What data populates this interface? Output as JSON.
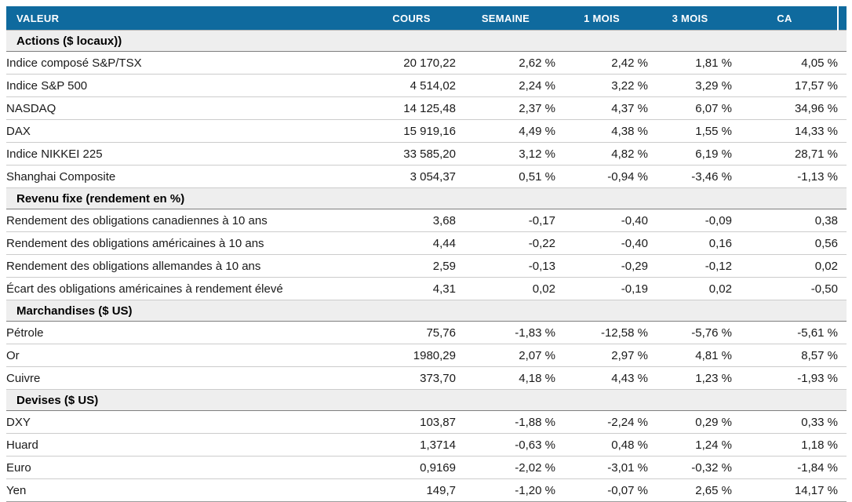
{
  "colors": {
    "header_bg": "#0f6a9e",
    "positive": "#21a15a",
    "negative": "#e0291b",
    "section_bg": "#eeeeee"
  },
  "chart_data": {
    "type": "table",
    "columns": [
      "VALEUR",
      "COURS",
      "SEMAINE",
      "1 MOIS",
      "3 MOIS",
      "CA"
    ],
    "sections": [
      {
        "title": "Actions ($ locaux))",
        "rows": [
          {
            "label": "Indice composé S&P/TSX",
            "cours": "20 170,22",
            "changes": [
              {
                "v": "2,62 %",
                "t": "g"
              },
              {
                "v": "2,42 %",
                "t": "g"
              },
              {
                "v": "1,81 %",
                "t": "g"
              },
              {
                "v": "4,05 %",
                "t": "g"
              }
            ]
          },
          {
            "label": "Indice S&P 500",
            "cours": "4 514,02",
            "changes": [
              {
                "v": "2,24 %",
                "t": "g"
              },
              {
                "v": "3,22 %",
                "t": "g"
              },
              {
                "v": "3,29 %",
                "t": "g"
              },
              {
                "v": "17,57 %",
                "t": "g"
              }
            ]
          },
          {
            "label": "NASDAQ",
            "cours": "14 125,48",
            "changes": [
              {
                "v": "2,37 %",
                "t": "g"
              },
              {
                "v": "4,37 %",
                "t": "g"
              },
              {
                "v": "6,07 %",
                "t": "g"
              },
              {
                "v": "34,96 %",
                "t": "g"
              }
            ]
          },
          {
            "label": "DAX",
            "cours": "15 919,16",
            "changes": [
              {
                "v": "4,49 %",
                "t": "g"
              },
              {
                "v": "4,38 %",
                "t": "g"
              },
              {
                "v": "1,55 %",
                "t": "g"
              },
              {
                "v": "14,33 %",
                "t": "g"
              }
            ]
          },
          {
            "label": "Indice NIKKEI 225",
            "cours": "33 585,20",
            "changes": [
              {
                "v": "3,12 %",
                "t": "g"
              },
              {
                "v": "4,82 %",
                "t": "g"
              },
              {
                "v": "6,19 %",
                "t": "g"
              },
              {
                "v": "28,71 %",
                "t": "g"
              }
            ]
          },
          {
            "label": "Shanghai Composite",
            "cours": "3 054,37",
            "changes": [
              {
                "v": "0,51 %",
                "t": "g"
              },
              {
                "v": "-0,94 %",
                "t": "r"
              },
              {
                "v": "-3,46 %",
                "t": "r"
              },
              {
                "v": "-1,13 %",
                "t": "r"
              }
            ]
          }
        ]
      },
      {
        "title": "Revenu fixe (rendement en %)",
        "rows": [
          {
            "label": "Rendement des obligations canadiennes à 10 ans",
            "cours": "3,68",
            "changes": [
              {
                "v": "-0,17",
                "t": "g"
              },
              {
                "v": "-0,40",
                "t": "g"
              },
              {
                "v": "-0,09",
                "t": "g"
              },
              {
                "v": "0,38",
                "t": "r"
              }
            ]
          },
          {
            "label": "Rendement des obligations américaines à 10 ans",
            "cours": "4,44",
            "changes": [
              {
                "v": "-0,22",
                "t": "g"
              },
              {
                "v": "-0,40",
                "t": "g"
              },
              {
                "v": "0,16",
                "t": "r"
              },
              {
                "v": "0,56",
                "t": "r"
              }
            ]
          },
          {
            "label": "Rendement des obligations allemandes à 10 ans",
            "cours": "2,59",
            "changes": [
              {
                "v": "-0,13",
                "t": "g"
              },
              {
                "v": "-0,29",
                "t": "g"
              },
              {
                "v": "-0,12",
                "t": "g"
              },
              {
                "v": "0,02",
                "t": "r"
              }
            ]
          },
          {
            "label": "Écart des obligations américaines à rendement élevé",
            "cours": "4,31",
            "changes": [
              {
                "v": "0,02",
                "t": "r"
              },
              {
                "v": "-0,19",
                "t": "g"
              },
              {
                "v": "0,02",
                "t": "r"
              },
              {
                "v": "-0,50",
                "t": "g"
              }
            ]
          }
        ]
      },
      {
        "title": "Marchandises ($ US)",
        "rows": [
          {
            "label": "Pétrole",
            "cours": "75,76",
            "changes": [
              {
                "v": "-1,83 %",
                "t": "r"
              },
              {
                "v": "-12,58 %",
                "t": "r"
              },
              {
                "v": "-5,76 %",
                "t": "r"
              },
              {
                "v": "-5,61 %",
                "t": "r"
              }
            ]
          },
          {
            "label": "Or",
            "cours": "1980,29",
            "changes": [
              {
                "v": "2,07 %",
                "t": "g"
              },
              {
                "v": "2,97 %",
                "t": "g"
              },
              {
                "v": "4,81 %",
                "t": "g"
              },
              {
                "v": "8,57 %",
                "t": "g"
              }
            ]
          },
          {
            "label": "Cuivre",
            "cours": "373,70",
            "changes": [
              {
                "v": "4,18 %",
                "t": "g"
              },
              {
                "v": "4,43 %",
                "t": "g"
              },
              {
                "v": "1,23 %",
                "t": "g"
              },
              {
                "v": "-1,93 %",
                "t": "r"
              }
            ]
          }
        ]
      },
      {
        "title": "Devises ($ US)",
        "rows": [
          {
            "label": "DXY",
            "cours": "103,87",
            "changes": [
              {
                "v": "-1,88 %",
                "t": "r"
              },
              {
                "v": "-2,24 %",
                "t": "r"
              },
              {
                "v": "0,29 %",
                "t": "g"
              },
              {
                "v": "0,33 %",
                "t": "g"
              }
            ]
          },
          {
            "label": "Huard",
            "cours": "1,3714",
            "changes": [
              {
                "v": "-0,63 %",
                "t": "r"
              },
              {
                "v": "0,48 %",
                "t": "g"
              },
              {
                "v": "1,24 %",
                "t": "g"
              },
              {
                "v": "1,18 %",
                "t": "g"
              }
            ]
          },
          {
            "label": "Euro",
            "cours": "0,9169",
            "changes": [
              {
                "v": "-2,02 %",
                "t": "r"
              },
              {
                "v": "-3,01 %",
                "t": "r"
              },
              {
                "v": "-0,32 %",
                "t": "r"
              },
              {
                "v": "-1,84 %",
                "t": "r"
              }
            ]
          },
          {
            "label": "Yen",
            "cours": "149,7",
            "changes": [
              {
                "v": "-1,20 %",
                "t": "r"
              },
              {
                "v": "-0,07 %",
                "t": "r"
              },
              {
                "v": "2,65 %",
                "t": "g"
              },
              {
                "v": "14,17 %",
                "t": "g"
              }
            ]
          }
        ]
      }
    ]
  }
}
